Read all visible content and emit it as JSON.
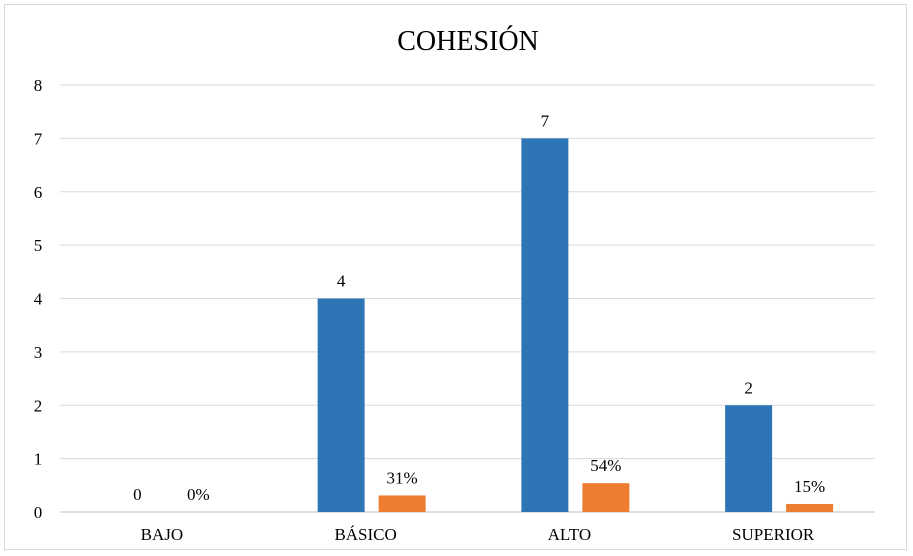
{
  "chart_data": {
    "type": "bar",
    "title": "COHESIÓN",
    "categories": [
      "BAJO",
      "BÁSICO",
      "ALTO",
      "SUPERIOR"
    ],
    "ylim": [
      0,
      8
    ],
    "yticks": [
      0,
      1,
      2,
      3,
      4,
      5,
      6,
      7,
      8
    ],
    "grid": true,
    "series": [
      {
        "values": [
          0,
          4,
          7,
          2
        ],
        "labels": [
          "0",
          "4",
          "7",
          "2"
        ],
        "color": "#2E75B6"
      },
      {
        "values": [
          0,
          0.31,
          0.54,
          0.15
        ],
        "labels": [
          "0%",
          "31%",
          "54%",
          "15%"
        ],
        "color": "#ED7D31"
      }
    ]
  }
}
